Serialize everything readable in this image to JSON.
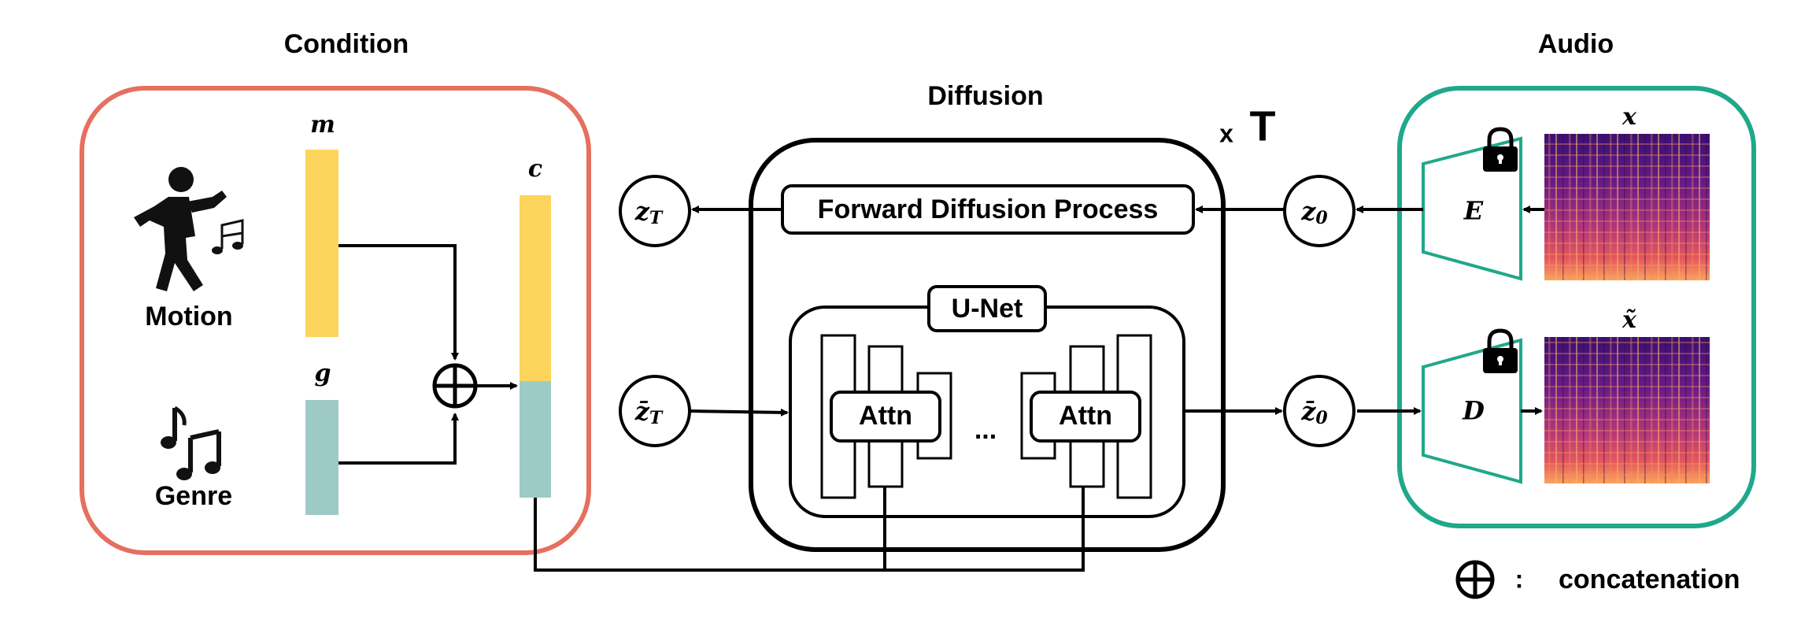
{
  "condition": {
    "title": "Condition",
    "motion_label": "Motion",
    "genre_label": "Genre",
    "m_label": "m",
    "g_label": "g",
    "c_label": "c",
    "motion_color": "#FDD45C",
    "genre_color": "#9ECAC6",
    "border_color": "#E5705F"
  },
  "diffusion": {
    "title": "Diffusion",
    "repeat_prefix": "x",
    "repeat_symbol": "T",
    "forward_label": "Forward Diffusion Process",
    "unet_label": "U-Net",
    "attn_label": "Attn",
    "ellipsis": "...",
    "z_T": "z",
    "z_T_sub": "T",
    "zbar_T": "z̄",
    "zbar_T_sub": "T",
    "z_0": "z",
    "z_0_sub": "0",
    "zbar_0": "z̄",
    "zbar_0_sub": "0"
  },
  "audio": {
    "title": "Audio",
    "x_label": "x",
    "x_tilde_label": "x̃",
    "encoder_label": "E",
    "decoder_label": "D",
    "border_color": "#1FA88A"
  },
  "legend": {
    "concat_label": "concatenation",
    "colon": ":"
  }
}
